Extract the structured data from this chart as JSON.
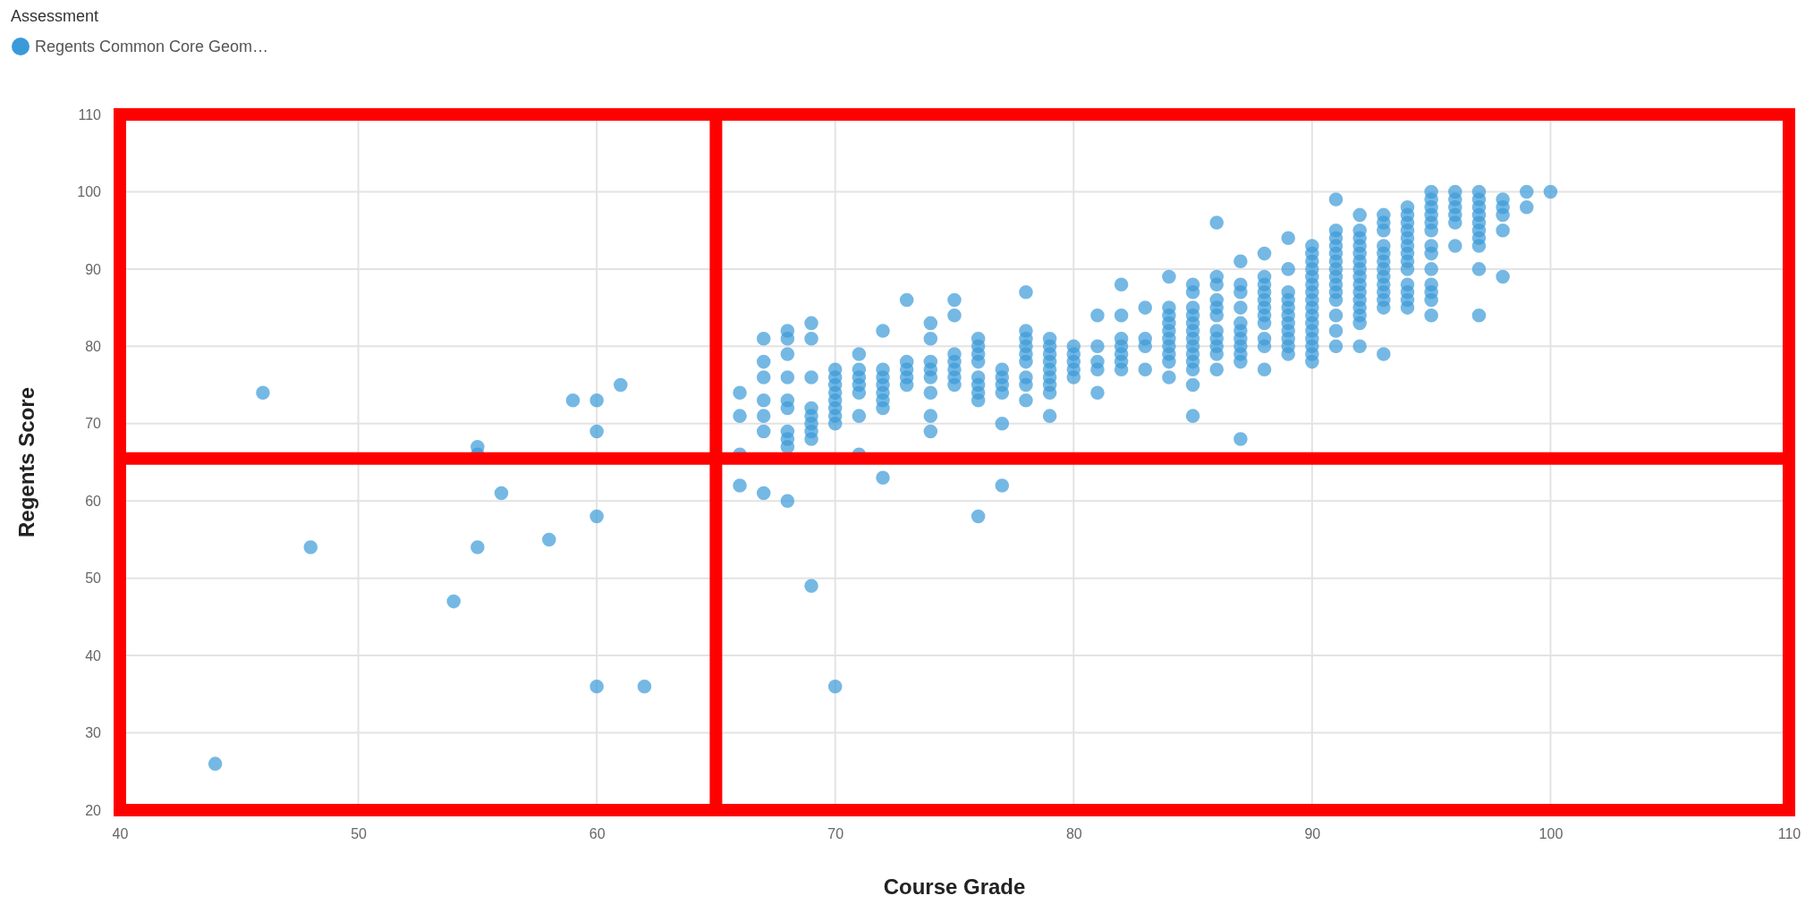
{
  "chart_data": {
    "type": "scatter",
    "xlabel": "Course Grade",
    "ylabel": "Regents Score",
    "legend_title": "Assessment",
    "xlim": [
      40,
      110
    ],
    "xticks": [
      40,
      50,
      60,
      70,
      80,
      90,
      100,
      110
    ],
    "ylim": [
      20,
      110
    ],
    "yticks": [
      20,
      30,
      40,
      50,
      60,
      70,
      80,
      90,
      100,
      110
    ],
    "grid": true,
    "legend": "top left",
    "marker": "circle",
    "ref_lines": [
      {
        "axis": "x",
        "value": 65,
        "color": "#ff0000"
      },
      {
        "axis": "y",
        "value": 65.5,
        "color": "#ff0000"
      }
    ],
    "series": [
      {
        "name": "Regents Common Core Geom…",
        "color": "#3a9ad9",
        "x": [
          44,
          46,
          48,
          54,
          55,
          55,
          55,
          56,
          58,
          59,
          60,
          60,
          60,
          60,
          61,
          62,
          66,
          67,
          68,
          69,
          70,
          72,
          76,
          77,
          71,
          66,
          66,
          66,
          67,
          67,
          67,
          67,
          67,
          67,
          68,
          68,
          68,
          68,
          68,
          68,
          68,
          68,
          68,
          69,
          69,
          69,
          69,
          69,
          69,
          69,
          69,
          70,
          70,
          70,
          70,
          70,
          70,
          70,
          70,
          71,
          71,
          71,
          71,
          71,
          71,
          72,
          72,
          72,
          72,
          72,
          72,
          72,
          73,
          73,
          73,
          73,
          73,
          74,
          74,
          74,
          74,
          74,
          74,
          74,
          74,
          75,
          75,
          75,
          75,
          75,
          75,
          75,
          76,
          76,
          76,
          76,
          76,
          76,
          76,
          76,
          77,
          77,
          77,
          77,
          77,
          78,
          78,
          78,
          78,
          78,
          78,
          78,
          78,
          78,
          79,
          79,
          79,
          79,
          79,
          79,
          79,
          79,
          79,
          80,
          80,
          80,
          80,
          80,
          81,
          81,
          81,
          81,
          81,
          82,
          82,
          82,
          82,
          82,
          82,
          82,
          83,
          83,
          83,
          83,
          84,
          84,
          84,
          84,
          84,
          84,
          84,
          84,
          84,
          84,
          85,
          85,
          85,
          85,
          85,
          85,
          85,
          85,
          85,
          85,
          85,
          85,
          85,
          86,
          86,
          86,
          86,
          86,
          86,
          86,
          86,
          86,
          86,
          86,
          87,
          87,
          87,
          87,
          87,
          87,
          87,
          87,
          87,
          87,
          87,
          88,
          88,
          88,
          88,
          88,
          88,
          88,
          88,
          88,
          88,
          88,
          89,
          89,
          89,
          89,
          89,
          89,
          89,
          89,
          89,
          89,
          89,
          90,
          90,
          90,
          90,
          90,
          90,
          90,
          90,
          90,
          90,
          90,
          90,
          90,
          90,
          90,
          90,
          91,
          91,
          91,
          91,
          91,
          91,
          91,
          91,
          91,
          91,
          91,
          91,
          91,
          91,
          92,
          92,
          92,
          92,
          92,
          92,
          92,
          92,
          92,
          92,
          92,
          92,
          92,
          92,
          92,
          93,
          93,
          93,
          93,
          93,
          93,
          93,
          93,
          93,
          93,
          93,
          93,
          93,
          94,
          94,
          94,
          94,
          94,
          94,
          94,
          94,
          94,
          94,
          94,
          94,
          94,
          95,
          95,
          95,
          95,
          95,
          95,
          95,
          95,
          95,
          95,
          95,
          95,
          95,
          96,
          96,
          96,
          96,
          96,
          96,
          97,
          97,
          97,
          97,
          97,
          97,
          97,
          97,
          97,
          97,
          98,
          98,
          98,
          98,
          98,
          99,
          99,
          100
        ],
        "values": [
          26,
          74,
          54,
          47,
          67,
          66,
          54,
          61,
          55,
          73,
          73,
          69,
          58,
          36,
          75,
          36,
          62,
          61,
          60,
          49,
          36,
          63,
          58,
          62,
          66,
          74,
          71,
          66,
          81,
          78,
          76,
          73,
          71,
          69,
          82,
          81,
          79,
          76,
          73,
          72,
          69,
          68,
          67,
          83,
          81,
          76,
          72,
          71,
          70,
          69,
          68,
          77,
          76,
          75,
          74,
          73,
          72,
          71,
          70,
          79,
          77,
          76,
          75,
          74,
          71,
          82,
          77,
          76,
          75,
          74,
          73,
          72,
          86,
          78,
          77,
          76,
          75,
          83,
          81,
          78,
          77,
          76,
          74,
          71,
          69,
          86,
          84,
          79,
          78,
          77,
          76,
          75,
          81,
          80,
          79,
          78,
          76,
          75,
          74,
          73,
          77,
          76,
          75,
          74,
          70,
          87,
          82,
          81,
          80,
          79,
          78,
          76,
          75,
          73,
          81,
          80,
          79,
          78,
          77,
          76,
          75,
          74,
          71,
          80,
          79,
          78,
          77,
          76,
          84,
          80,
          78,
          77,
          74,
          88,
          84,
          81,
          80,
          79,
          78,
          77,
          85,
          81,
          80,
          77,
          89,
          85,
          84,
          83,
          82,
          81,
          80,
          79,
          78,
          76,
          88,
          87,
          85,
          84,
          83,
          82,
          81,
          80,
          79,
          78,
          77,
          75,
          71,
          96,
          89,
          88,
          86,
          85,
          84,
          82,
          81,
          80,
          79,
          77,
          91,
          88,
          87,
          85,
          83,
          82,
          81,
          80,
          79,
          78,
          68,
          92,
          89,
          88,
          87,
          86,
          85,
          84,
          83,
          81,
          80,
          77,
          94,
          90,
          87,
          86,
          85,
          84,
          83,
          82,
          81,
          80,
          79,
          93,
          92,
          91,
          90,
          89,
          88,
          87,
          86,
          85,
          84,
          83,
          82,
          81,
          80,
          79,
          78,
          99,
          95,
          94,
          93,
          92,
          91,
          90,
          89,
          88,
          87,
          86,
          84,
          82,
          80,
          97,
          95,
          94,
          93,
          92,
          91,
          90,
          89,
          88,
          87,
          86,
          85,
          84,
          83,
          80,
          97,
          96,
          95,
          93,
          92,
          91,
          90,
          89,
          88,
          87,
          86,
          85,
          79,
          98,
          97,
          96,
          95,
          94,
          93,
          92,
          91,
          90,
          88,
          87,
          86,
          85,
          100,
          99,
          98,
          97,
          96,
          95,
          93,
          92,
          90,
          88,
          87,
          86,
          84,
          100,
          99,
          98,
          97,
          96,
          93,
          100,
          99,
          98,
          97,
          96,
          95,
          94,
          93,
          90,
          84,
          99,
          98,
          97,
          95,
          89,
          100,
          98,
          100
        ]
      }
    ]
  }
}
